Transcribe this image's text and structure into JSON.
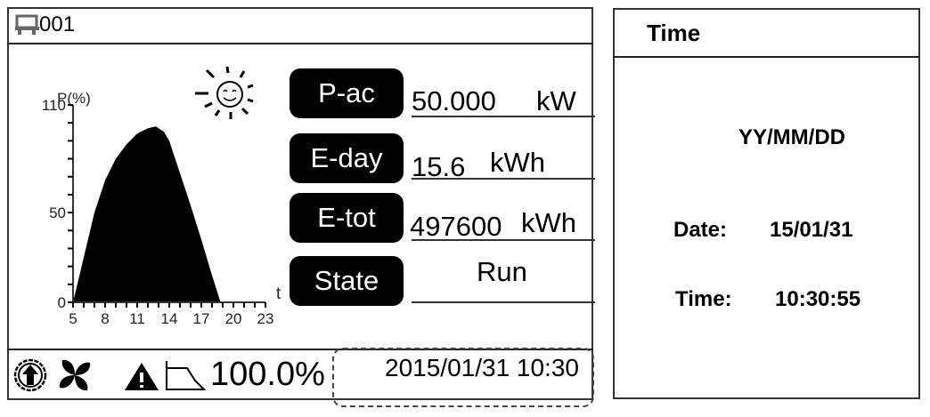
{
  "header": {
    "device_icon": "inverter-device-icon",
    "device_id": "001"
  },
  "weather_icon": "sun-smiley-icon",
  "readings": [
    {
      "label": "P-ac",
      "value": "50.000",
      "unit": "kW"
    },
    {
      "label": "E-day",
      "value": "15.6",
      "unit": "kWh"
    },
    {
      "label": "E-tot",
      "value": "497600",
      "unit": "kWh"
    },
    {
      "label": "State",
      "value": "Run",
      "unit": ""
    }
  ],
  "status_bar": {
    "icons": [
      "upload-arrow-icon",
      "fan-icon",
      "warning-icon",
      "derating-curve-icon"
    ],
    "derating": "100.0%",
    "datetime": "2015/01/31 10:30"
  },
  "time_panel": {
    "title": "Time",
    "format": "YY/MM/DD",
    "date_label": "Date:",
    "date_value": "15/01/31",
    "time_label": "Time:",
    "time_value": "10:30:55"
  },
  "chart_data": {
    "type": "area",
    "ylabel": "P(%)",
    "xlabel": "t",
    "ylim": [
      0,
      110
    ],
    "xlim": [
      5,
      23
    ],
    "y_ticks": [
      "0",
      "50",
      "110"
    ],
    "x_ticks": [
      "5",
      "8",
      "11",
      "14",
      "17",
      "20",
      "23"
    ],
    "x": [
      5,
      6,
      7,
      8,
      9,
      10,
      11,
      12,
      12.75,
      13.5,
      14,
      15,
      16,
      17,
      18,
      18.8
    ],
    "values": [
      0,
      25,
      50,
      68,
      80,
      88,
      94,
      97,
      98,
      95,
      90,
      72,
      54,
      35,
      15,
      0
    ],
    "fill_color": "#000000"
  }
}
